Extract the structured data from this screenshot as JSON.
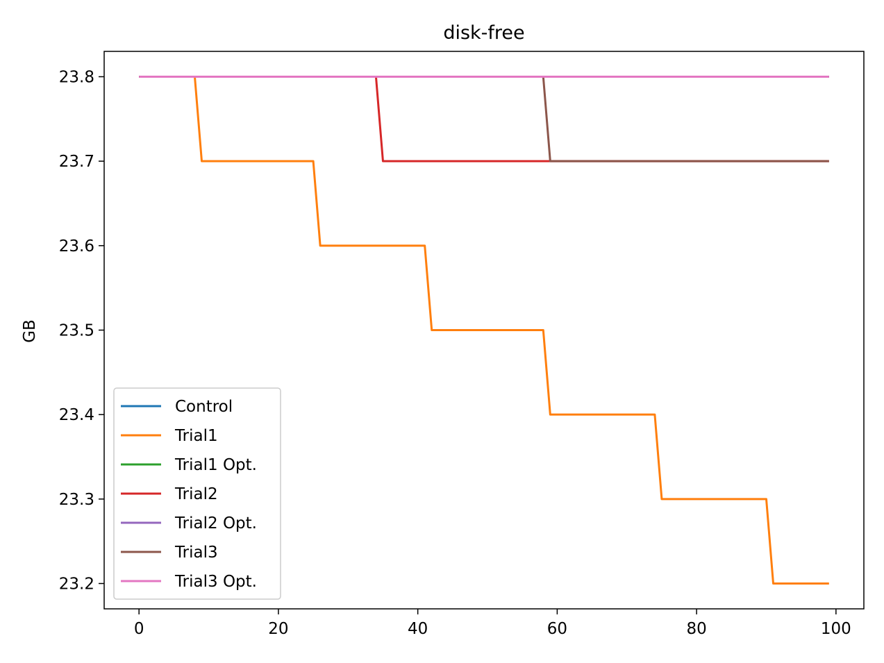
{
  "chart_data": {
    "type": "line",
    "title": "disk-free",
    "xlabel": "",
    "ylabel": "GB",
    "xlim": [
      -5,
      104
    ],
    "ylim": [
      23.17,
      23.83
    ],
    "xticks": [
      0,
      20,
      40,
      60,
      80,
      100
    ],
    "yticks": [
      23.2,
      23.3,
      23.4,
      23.5,
      23.6,
      23.7,
      23.8
    ],
    "ytick_labels": [
      "23.2",
      "23.3",
      "23.4",
      "23.5",
      "23.6",
      "23.7",
      "23.8"
    ],
    "grid": false,
    "legend_position": "lower-left",
    "series": [
      {
        "name": "Control",
        "color": "#1f77b4",
        "x": [
          0,
          99
        ],
        "y": [
          23.8,
          23.8
        ]
      },
      {
        "name": "Trial1",
        "color": "#ff7f0e",
        "x": [
          0,
          8,
          9,
          25,
          26,
          41,
          42,
          58,
          59,
          74,
          75,
          90,
          91,
          99
        ],
        "y": [
          23.8,
          23.8,
          23.7,
          23.7,
          23.6,
          23.6,
          23.5,
          23.5,
          23.4,
          23.4,
          23.3,
          23.3,
          23.2,
          23.2
        ]
      },
      {
        "name": "Trial1 Opt.",
        "color": "#2ca02c",
        "x": [
          0,
          99
        ],
        "y": [
          23.8,
          23.8
        ]
      },
      {
        "name": "Trial2",
        "color": "#d62728",
        "x": [
          0,
          34,
          35,
          99
        ],
        "y": [
          23.8,
          23.8,
          23.7,
          23.7
        ]
      },
      {
        "name": "Trial2 Opt.",
        "color": "#9467bd",
        "x": [
          0,
          99
        ],
        "y": [
          23.8,
          23.8
        ]
      },
      {
        "name": "Trial3",
        "color": "#8c564b",
        "x": [
          0,
          58,
          59,
          99
        ],
        "y": [
          23.8,
          23.8,
          23.7,
          23.7
        ]
      },
      {
        "name": "Trial3 Opt.",
        "color": "#e377c2",
        "x": [
          0,
          99
        ],
        "y": [
          23.8,
          23.8
        ]
      }
    ]
  }
}
